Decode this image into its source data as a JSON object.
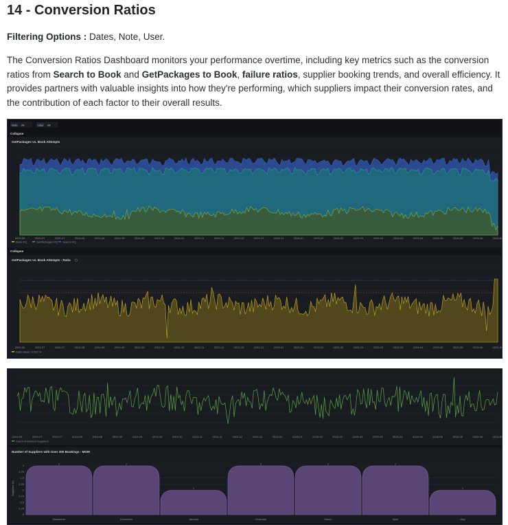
{
  "header": {
    "title": "14 - Conversion Ratios"
  },
  "filter": {
    "label": "Filtering Options :",
    "values": " Dates, Note, User."
  },
  "description": {
    "p1": "The Conversion Ratios Dashboard monitors your performance overtime, including key metrics such as the conversion ratios from ",
    "b1": "Search to Book",
    "p2": " and ",
    "b2": "GetPackages to Book",
    "p3": ", ",
    "b3": "failure ratios",
    "p4": ", supplier booking trends, and overall efficiency. It provides partners with valuable insights into how they're performing, which suppliers impact their conversion rates, and the contribution of each factor to their overall results."
  },
  "dashboard": {
    "variables": [
      {
        "name": "Note",
        "value": "All"
      },
      {
        "name": "User",
        "value": "All"
      }
    ],
    "row_label": "Collapse",
    "panel1": {
      "title": "GetPackages vs. Book Attempts",
      "legend": [
        "Book RQ",
        "GetPackages RQ",
        "Search RQ"
      ],
      "colors": [
        "#c4c430",
        "#2aa198",
        "#3a63c8"
      ]
    },
    "panel2": {
      "title": "GetPackages vs. Book Attempts - Ratio",
      "legend": [
        "Ratio  Mean: 0.000 %"
      ],
      "color": "#d4b320"
    },
    "panel3": {
      "legend": [
        "Count of Booked Suppliers"
      ],
      "color": "#5fa84a"
    },
    "panel4": {
      "title": "Number of Suppliers with Over 300 Bookings - MOM",
      "ylabel": "Suppliers (#)",
      "color": "#6b4e8c"
    }
  },
  "chart_data": [
    {
      "type": "area",
      "title": "GetPackages vs. Book Attempts",
      "x": [
        "2024-06",
        "2024-07",
        "2024-07",
        "2024-08",
        "2024-08",
        "2024-09",
        "2024-09",
        "2024-10",
        "2024-10",
        "2024-11",
        "2024-11",
        "2024-12",
        "2024-12",
        "2025-01",
        "2025-01",
        "2025-02",
        "2025-02",
        "2025-03",
        "2025-03",
        "2025-04",
        "2025-04",
        "2025-05",
        "2025-05",
        "2025-06",
        "2025-06"
      ],
      "series": [
        {
          "name": "Book RQ"
        },
        {
          "name": "GetPackages RQ"
        },
        {
          "name": "Search RQ"
        }
      ]
    },
    {
      "type": "area",
      "title": "GetPackages vs. Book Attempts - Ratio",
      "x": [
        "2024-06",
        "2024-07",
        "2024-07",
        "2024-08",
        "2024-08",
        "2024-09",
        "2024-09",
        "2024-10",
        "2024-10",
        "2024-11",
        "2024-11",
        "2024-12",
        "2024-12",
        "2025-01",
        "2025-01",
        "2025-02",
        "2025-02",
        "2025-03",
        "2025-03",
        "2025-04",
        "2025-04",
        "2025-05",
        "2025-05",
        "2025-06",
        "2025-06"
      ],
      "series": [
        {
          "name": "Ratio"
        }
      ]
    },
    {
      "type": "line",
      "x": [
        "2024-06",
        "2024-07",
        "2024-07",
        "2024-08",
        "2024-08",
        "2024-09",
        "2024-09",
        "2024-10",
        "2024-10",
        "2024-11",
        "2024-11",
        "2024-12",
        "2024-12",
        "2025-01",
        "2025-01",
        "2025-02",
        "2025-02",
        "2025-03",
        "2025-03",
        "2025-04",
        "2025-04",
        "2025-05",
        "2025-05",
        "2025-06",
        "2025-06"
      ],
      "series": [
        {
          "name": "Count of Booked Suppliers"
        }
      ]
    },
    {
      "type": "bar",
      "title": "Number of Suppliers with Over 300 Bookings - MOM",
      "ylabel": "Suppliers (#)",
      "categories": [
        "November",
        "December",
        "January",
        "February",
        "March",
        "April",
        "May"
      ],
      "values": [
        2,
        2,
        1,
        2,
        2,
        2,
        1
      ],
      "ylim": [
        0,
        2.25
      ]
    }
  ]
}
